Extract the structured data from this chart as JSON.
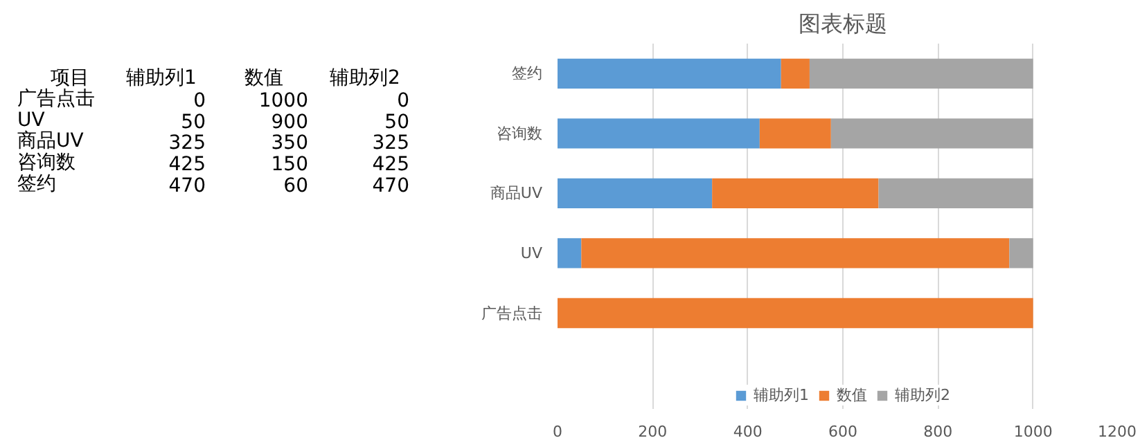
{
  "chart_data": {
    "type": "bar",
    "title": "图表标题",
    "orientation": "horizontal",
    "stacked": true,
    "categories": [
      "签约",
      "咨询数",
      "商品UV",
      "UV",
      "广告点击"
    ],
    "series": [
      {
        "name": "辅助列1",
        "color": "#5b9bd5",
        "values": [
          470,
          425,
          325,
          50,
          0
        ]
      },
      {
        "name": "数值",
        "color": "#ed7d31",
        "values": [
          60,
          150,
          350,
          900,
          1000
        ]
      },
      {
        "name": "辅助列2",
        "color": "#a5a5a5",
        "values": [
          470,
          425,
          325,
          50,
          0
        ]
      }
    ],
    "xlim": [
      0,
      1200
    ],
    "xticks": [
      0,
      200,
      400,
      600,
      800,
      1000,
      1200
    ],
    "grid": "x",
    "legend": "bottom",
    "annotations": [
      "项目",
      "辅助列1",
      "数值",
      "辅助列2",
      "广告点击",
      "0",
      "1000",
      "0",
      "UV",
      "50",
      "900",
      "50",
      "商品UV",
      "325",
      "350",
      "325",
      "咨询数",
      "425",
      "150",
      "425",
      "签约",
      "470",
      "60",
      "470"
    ]
  }
}
